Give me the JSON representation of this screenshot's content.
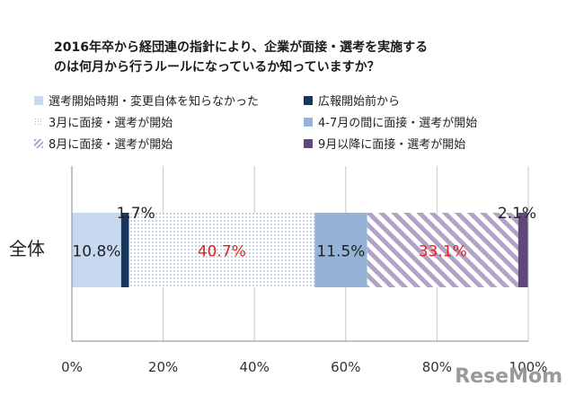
{
  "chart_data": {
    "type": "bar",
    "orientation": "horizontal",
    "stacked": true,
    "title": [
      "2016年卒から経団連の指針により、企業が面接・選考を実施する",
      "のは何月から行うルールになっているか知っていますか？"
    ],
    "categories": [
      "全体"
    ],
    "series": [
      {
        "name": "選考開始時期・変更自体を知らなかった",
        "values": [
          10.8
        ],
        "label": "10.8%",
        "color": "#c6d9f1",
        "pattern": "solid"
      },
      {
        "name": "広報開始前から",
        "values": [
          1.7
        ],
        "label": "1.7%",
        "color": "#17375e",
        "pattern": "solid"
      },
      {
        "name": "3月に面接・選考が開始",
        "values": [
          40.7
        ],
        "label": "40.7%",
        "color": "#b9cde5",
        "pattern": "dots"
      },
      {
        "name": "4-7月の間に面接・選考が開始",
        "values": [
          11.5
        ],
        "label": "11.5%",
        "color": "#95b3d7",
        "pattern": "solid"
      },
      {
        "name": "8月に面接・選考が開始",
        "values": [
          33.1
        ],
        "label": "33.1%",
        "color": "#b3a2c7",
        "pattern": "diagonal"
      },
      {
        "name": "9月以降に面接・選考が開始",
        "values": [
          2.1
        ],
        "label": "2.1%",
        "color": "#5f497a",
        "pattern": "solid"
      }
    ],
    "highlight_label_color": "#e2231a",
    "xlim": [
      0,
      100
    ],
    "x_ticks": [
      "0%",
      "20%",
      "40%",
      "60%",
      "80%",
      "100%"
    ],
    "grid": true,
    "legend_position": "top"
  },
  "watermark": "ReseMom"
}
